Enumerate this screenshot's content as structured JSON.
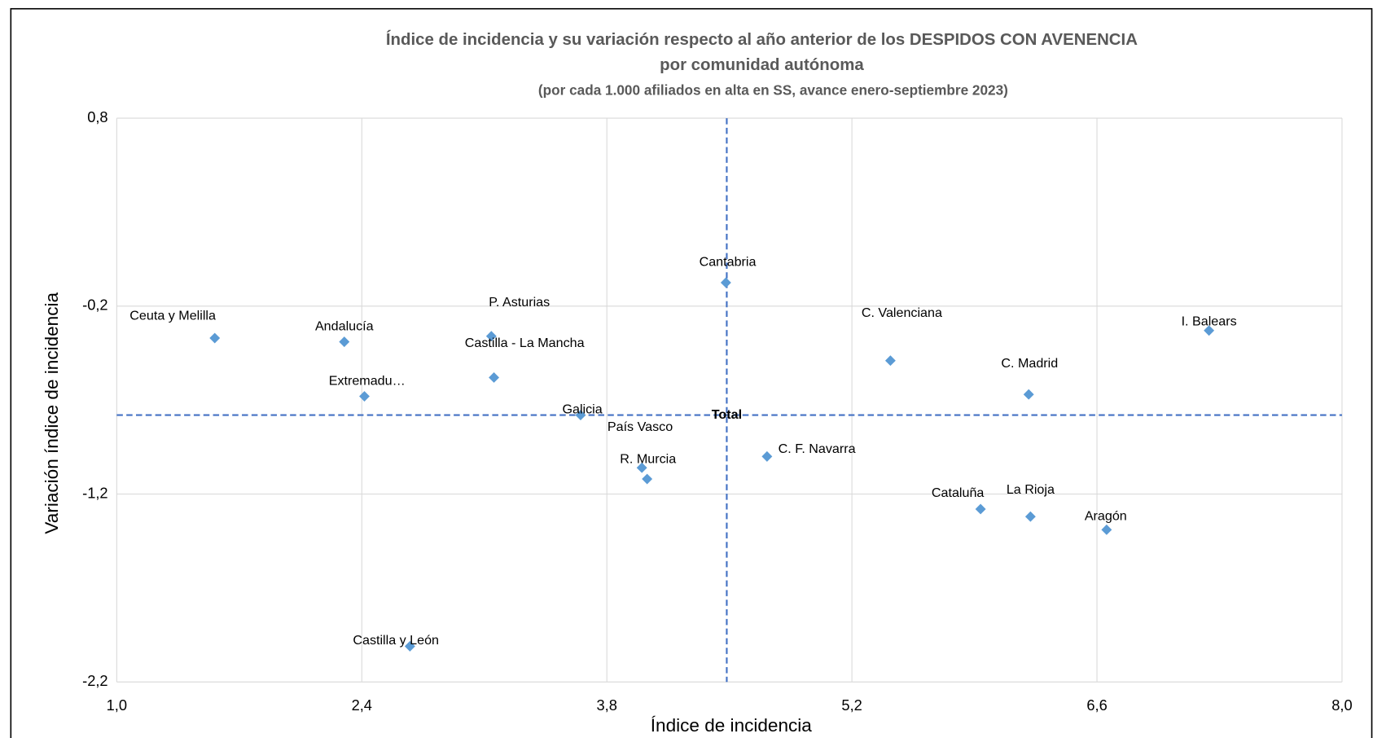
{
  "chart_data": {
    "type": "scatter",
    "title": "Índice de incidencia y su variación respecto al año anterior de los DESPIDOS CON AVENENCIA",
    "subtitle": "por comunidad autónoma",
    "note": "(por cada 1.000  afiliados en alta en SS, avance  enero-septiembre 2023)",
    "x_label": "Índice de incidencia",
    "y_label": "Variación  índice de incidencia",
    "color": "#5b9bd5",
    "grid": true,
    "xlim": [
      1.0,
      8.0
    ],
    "ylim": [
      -2.2,
      0.8
    ],
    "xticks": [
      {
        "value": 1.0,
        "label": "1,0"
      },
      {
        "value": 2.4,
        "label": "2,4"
      },
      {
        "value": 3.8,
        "label": "3,8"
      },
      {
        "value": 5.2,
        "label": "5,2"
      },
      {
        "value": 6.6,
        "label": "6,6"
      },
      {
        "value": 8.0,
        "label": "8,0"
      }
    ],
    "yticks": [
      {
        "value": 0.8,
        "label": "0,8"
      },
      {
        "value": -0.2,
        "label": "-0,2"
      },
      {
        "value": -1.2,
        "label": "-1,2"
      },
      {
        "value": -2.2,
        "label": "-2,2"
      }
    ],
    "labels": [
      "Ceuta y Melilla",
      "Andalucía",
      "P. Asturias",
      "Castilla - La Mancha",
      "Extremadu…",
      "Galicia",
      "País Vasco",
      "R. Murcia",
      "Cantabria",
      "C. F. Navarra",
      "C. Valenciana",
      "C. Madrid",
      "I. Balears",
      "Cataluña",
      "La Rioja",
      "Aragón",
      "Castilla y León"
    ],
    "x": [
      1.56,
      2.3,
      3.14,
      3.155,
      2.415,
      3.65,
      4.0,
      4.03,
      4.48,
      4.715,
      5.42,
      6.21,
      7.24,
      5.935,
      6.22,
      6.655,
      2.675
    ],
    "values": [
      -0.37,
      -0.39,
      -0.36,
      -0.58,
      -0.68,
      -0.78,
      -1.06,
      -1.12,
      -0.075,
      -1.0,
      -0.49,
      -0.67,
      -0.33,
      -1.28,
      -1.32,
      -1.39,
      -2.01
    ],
    "total": {
      "label": "Total",
      "x": 4.485,
      "y": -0.78
    }
  }
}
